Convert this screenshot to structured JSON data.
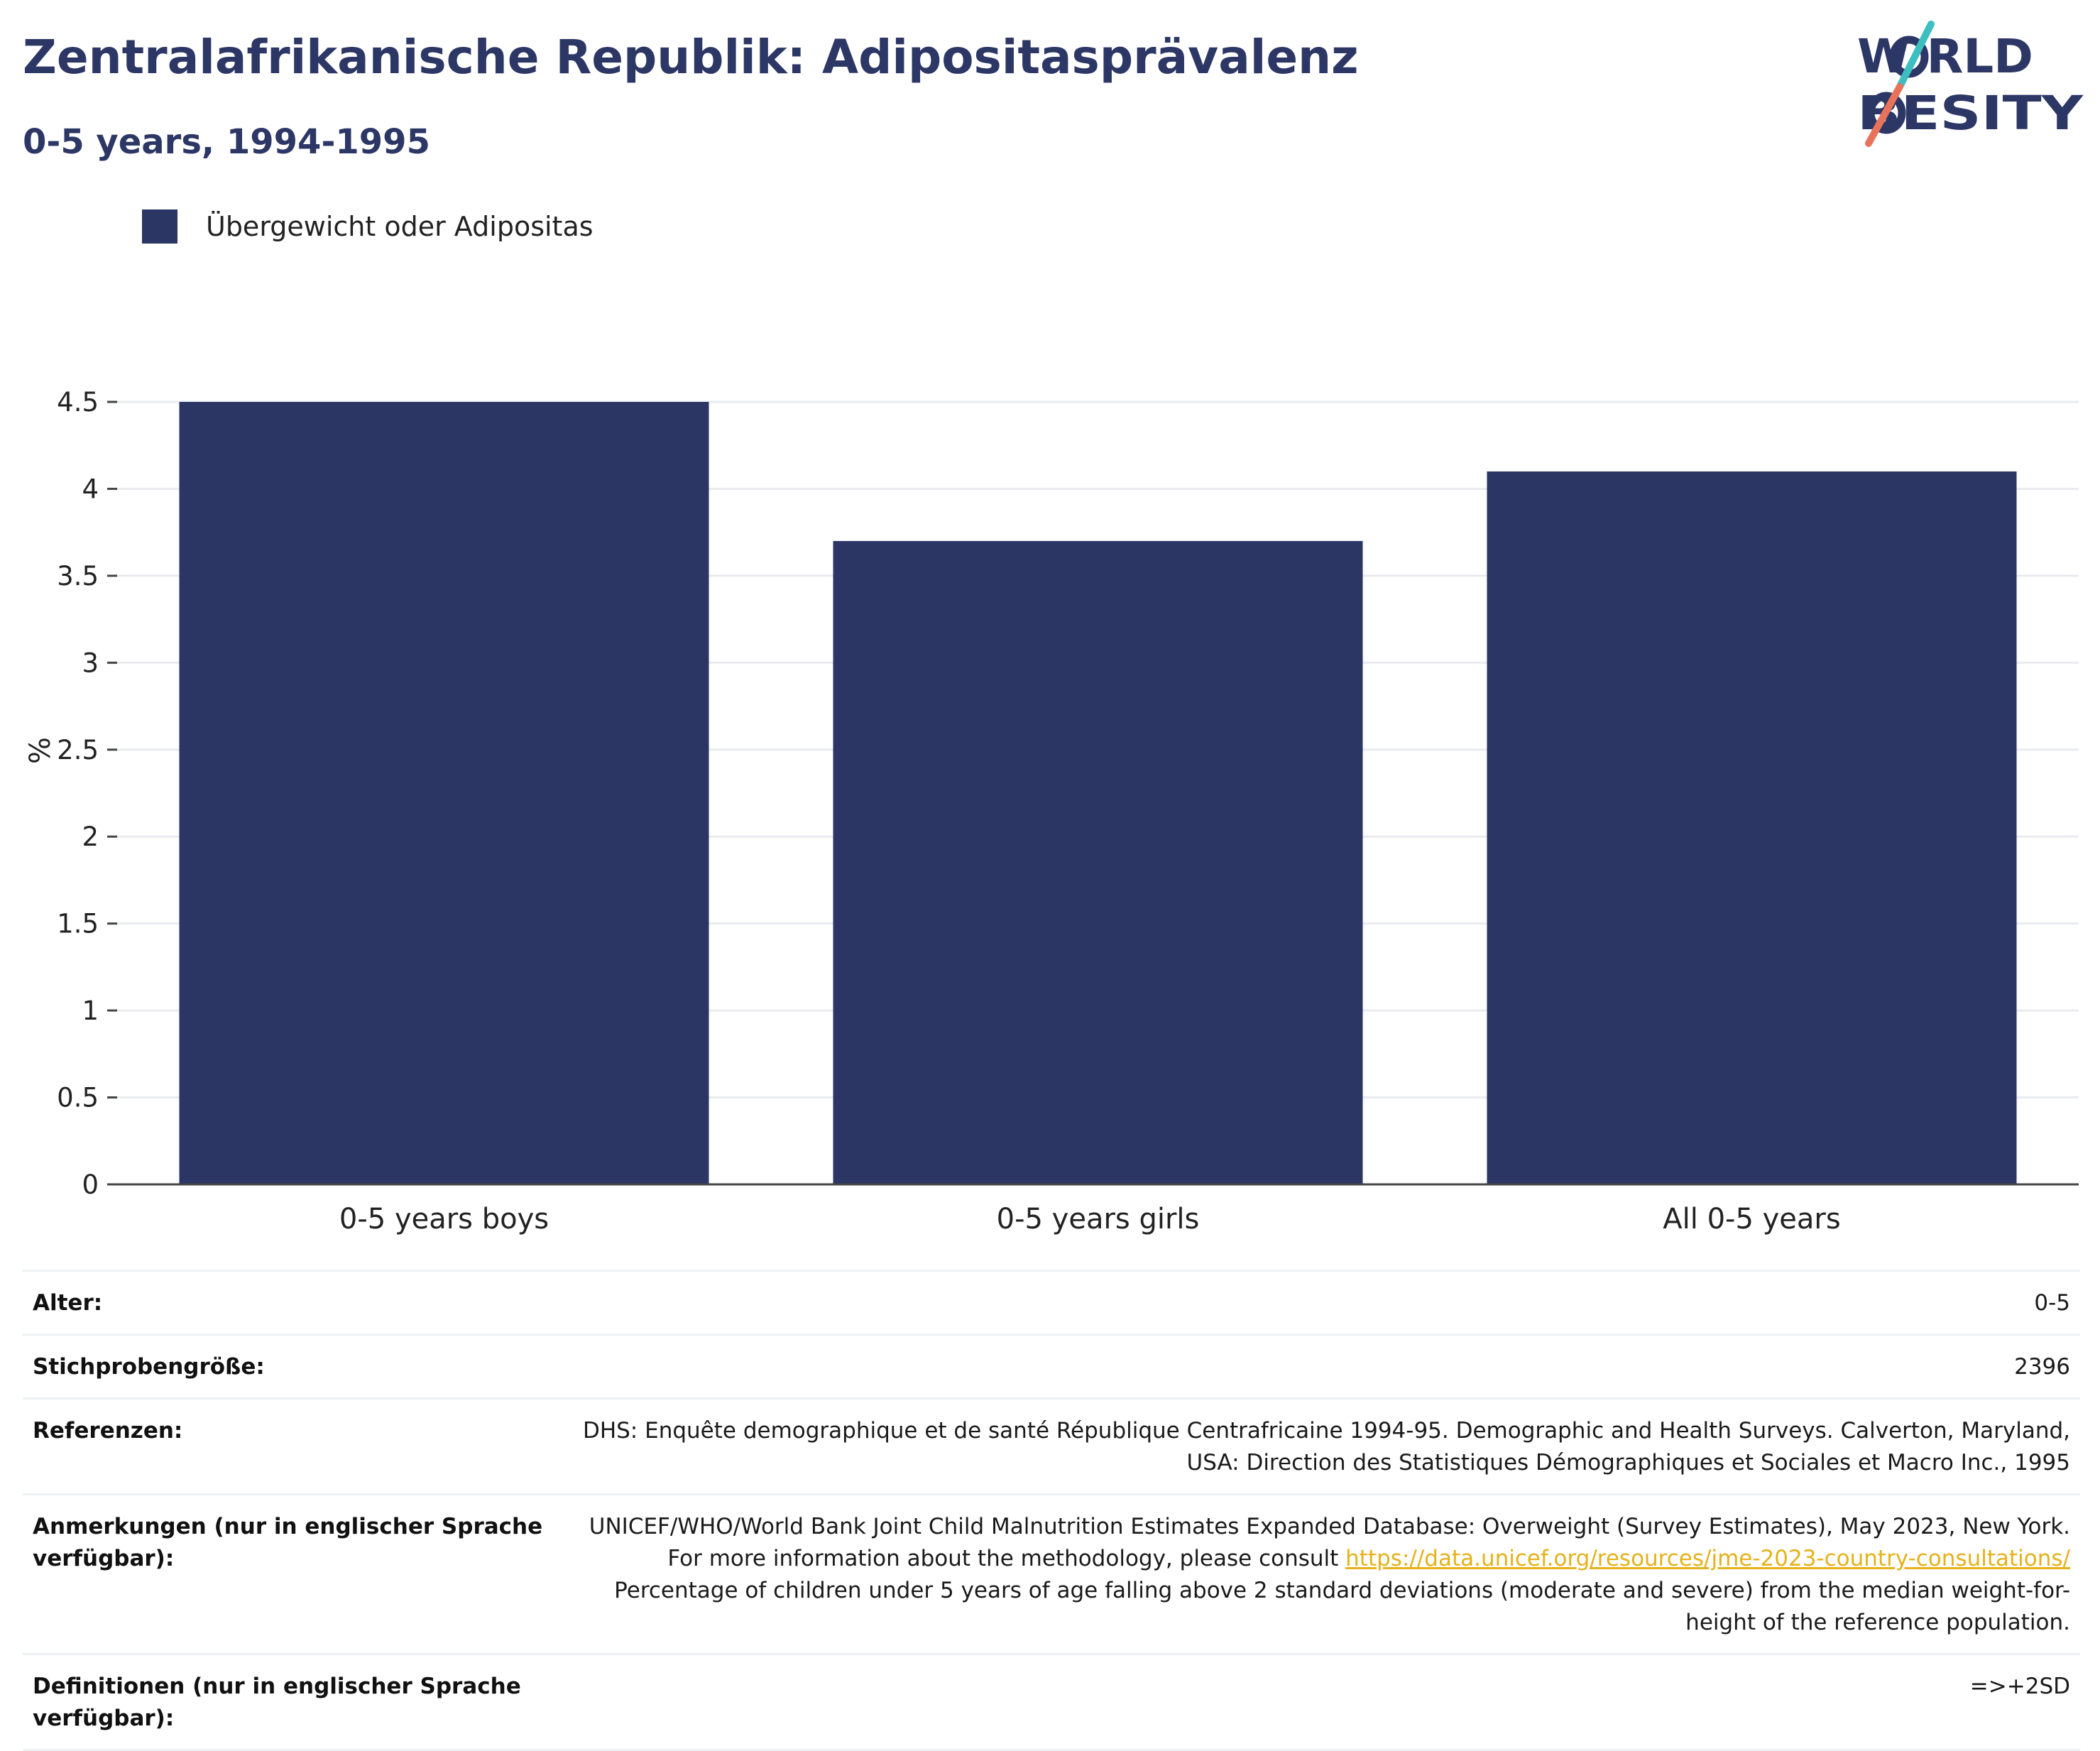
{
  "header": {
    "title": "Zentralafrikanische Republik: Adipositasprävalenz",
    "subtitle": "0-5 years, 1994-1995"
  },
  "logo": {
    "line1": "W RLD",
    "line2": "BESITY",
    "colors": {
      "text": "#2d3766",
      "accent_teal": "#3cbfc0",
      "accent_coral": "#e8735a"
    }
  },
  "chart_data": {
    "type": "bar",
    "categories": [
      "0-5 years boys",
      "0-5 years girls",
      "All 0-5 years"
    ],
    "series": [
      {
        "name": "Übergewicht oder Adipositas",
        "values": [
          4.5,
          3.7,
          4.1
        ],
        "color": "#2b3664"
      }
    ],
    "ylabel": "%",
    "xlabel": "",
    "ylim": [
      0,
      4.5
    ],
    "yticks": [
      0,
      0.5,
      1,
      1.5,
      2,
      2.5,
      3,
      3.5,
      4,
      4.5
    ],
    "ytick_labels": [
      "0",
      "0.5",
      "1",
      "1.5",
      "2",
      "2.5",
      "3",
      "3.5",
      "4",
      "4.5"
    ],
    "grid": true,
    "legend_position": "top-left"
  },
  "info": [
    {
      "key": "Alter:",
      "value": "0-5"
    },
    {
      "key": "Stichprobengröße:",
      "value": "2396"
    },
    {
      "key": "Referenzen:",
      "value": "DHS: Enquête demographique et de santé République Centrafricaine 1994-95. Demographic and Health Surveys. Calverton, Maryland, USA: Direction des Statistiques Démographiques et Sociales et Macro Inc., 1995"
    },
    {
      "key": "Anmerkungen (nur in englischer Sprache verfügbar):",
      "value_before": "UNICEF/WHO/World Bank Joint Child Malnutrition Estimates Expanded Database: Overweight (Survey Estimates), May 2023, New York. For more information about the methodology, please consult ",
      "link": "https://data.unicef.org/resources/jme-2023-country-consultations/",
      "value_after": " Percentage of children under 5 years of age falling above 2 standard deviations (moderate and severe) from the median weight-for-height of the reference population."
    },
    {
      "key": "Definitionen (nur in englischer Sprache verfügbar):",
      "value": "=>+2SD"
    }
  ]
}
